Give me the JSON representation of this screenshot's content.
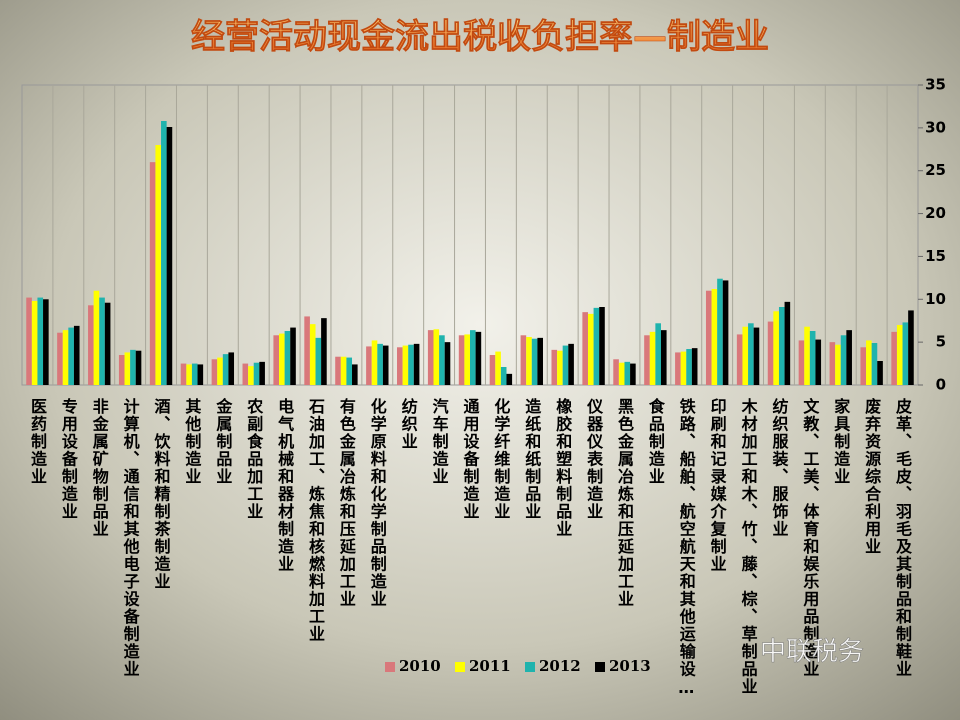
{
  "chart_data": {
    "type": "bar",
    "title": "经营活动现金流出税收负担率—制造业",
    "watermark": "中联税务",
    "categories": [
      "医药制造业",
      "专用设备制造业",
      "非金属矿物制品业",
      "计算机、通信和其他电子设备制造业",
      "酒、饮料和精制茶制造业",
      "其他制造业",
      "金属制品业",
      "农副食品加工业",
      "电气机械和器材制造业",
      "石油加工、炼焦和核燃料加工业",
      "有色金属冶炼和压延加工业",
      "化学原料和化学制品制造业",
      "纺织业",
      "汽车制造业",
      "通用设备制造业",
      "化学纤维制造业",
      "造纸和纸制品业",
      "橡胶和塑料制品业",
      "仪器仪表制造业",
      "黑色金属冶炼和压延加工业",
      "食品制造业",
      "铁路、船舶、航空航天和其他运输设…",
      "印刷和记录媒介复制业",
      "木材加工和木、竹、藤、棕、草制品业",
      "纺织服装、服饰业",
      "文教、工美、体育和娱乐用品制造业",
      "家具制造业",
      "废弃资源综合利用业",
      "皮革、毛皮、羽毛及其制品和制鞋业"
    ],
    "series": [
      {
        "name": "2010",
        "color": "#d9787b",
        "values": [
          10.2,
          6.1,
          9.3,
          3.5,
          26.0,
          2.5,
          3.0,
          2.5,
          5.8,
          8.0,
          3.3,
          4.5,
          4.4,
          6.4,
          5.8,
          3.5,
          5.8,
          4.1,
          8.5,
          3.0,
          5.8,
          3.8,
          11.0,
          5.9,
          7.4,
          5.2,
          5.0,
          4.4,
          6.2
        ]
      },
      {
        "name": "2011",
        "color": "#ffff00",
        "values": [
          9.8,
          6.4,
          11.0,
          3.8,
          28.0,
          2.4,
          3.2,
          2.2,
          6.0,
          7.1,
          3.3,
          5.2,
          4.6,
          6.5,
          5.9,
          3.9,
          5.6,
          4.0,
          8.3,
          2.6,
          6.2,
          3.9,
          11.2,
          6.8,
          8.6,
          6.8,
          4.7,
          5.2,
          7.0
        ]
      },
      {
        "name": "2012",
        "color": "#1fb3ad",
        "values": [
          10.2,
          6.7,
          10.2,
          4.1,
          30.8,
          2.5,
          3.6,
          2.6,
          6.3,
          5.5,
          3.2,
          4.8,
          4.7,
          5.8,
          6.4,
          2.1,
          5.4,
          4.6,
          9.0,
          2.7,
          7.2,
          4.2,
          12.4,
          7.2,
          9.1,
          6.3,
          5.8,
          4.9,
          7.3
        ]
      },
      {
        "name": "2013",
        "color": "#000000",
        "values": [
          10.0,
          6.9,
          9.6,
          4.0,
          30.1,
          2.4,
          3.8,
          2.7,
          6.7,
          7.8,
          2.4,
          4.6,
          4.8,
          5.0,
          6.2,
          1.3,
          5.5,
          4.8,
          9.1,
          2.5,
          6.4,
          4.3,
          12.2,
          6.7,
          9.7,
          5.3,
          6.4,
          2.8,
          8.7
        ]
      }
    ],
    "ylim": [
      0,
      35
    ],
    "yticks": [
      0,
      5,
      10,
      15,
      20,
      25,
      30,
      35
    ],
    "legend": "bottom"
  }
}
